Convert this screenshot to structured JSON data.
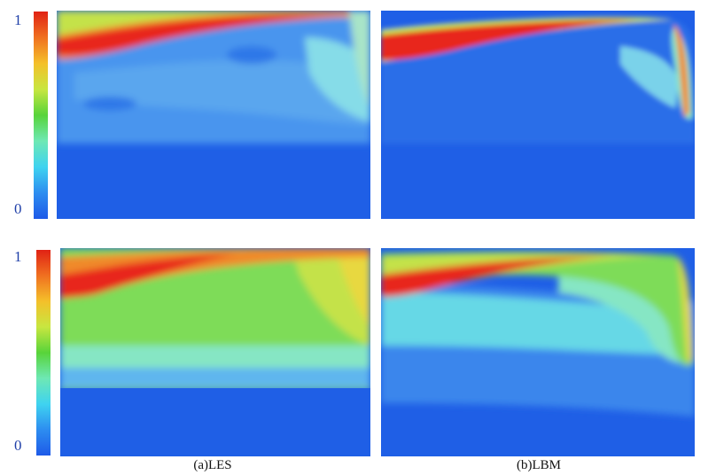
{
  "colorbar": {
    "top_label": "1",
    "bottom_label": "0",
    "stops": [
      "#1e5ae8",
      "#2d8df0",
      "#3fd3f0",
      "#6ee8b4",
      "#58d43a",
      "#c8e640",
      "#f4c02a",
      "#f07020",
      "#e02214"
    ]
  },
  "captions": {
    "les": "(a)LES",
    "lbm": "(b)LBM"
  },
  "palette": {
    "deep_blue": "#1f5fe6",
    "blue": "#3a86ec",
    "light_blue": "#5fb6ee",
    "cyan": "#66d8e6",
    "aqua": "#86e6c4",
    "green": "#7edc58",
    "yellow_green": "#c4e24a",
    "yellow": "#e8d840",
    "orange": "#f08a2a",
    "red": "#e8281c"
  }
}
